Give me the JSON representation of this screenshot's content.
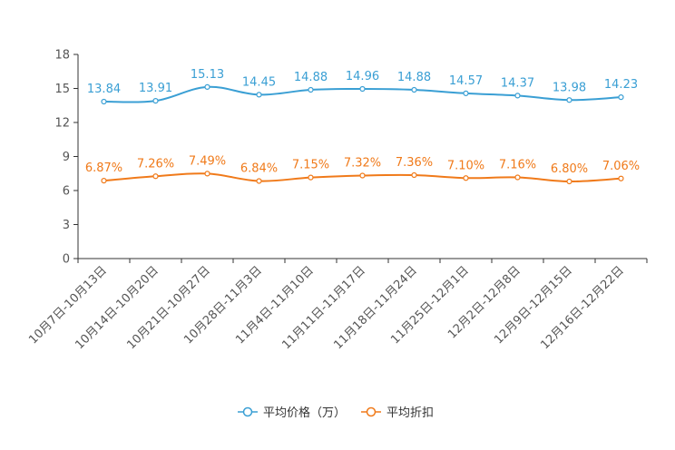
{
  "chart_data": {
    "type": "line",
    "title": "",
    "xlabel": "",
    "ylabel": "",
    "ylim": [
      0,
      18
    ],
    "yticks": [
      0,
      3,
      6,
      9,
      12,
      15,
      18
    ],
    "categories": [
      "10月7日-10月13日",
      "10月14日-10月20日",
      "10月21日-10月27日",
      "10月28日-11月3日",
      "11月4日-11月10日",
      "11月11日-11月17日",
      "11月18日-11月24日",
      "11月25日-12月1日",
      "12月2日-12月8日",
      "12月9日-12月15日",
      "12月16日-12月22日"
    ],
    "series": [
      {
        "name": "平均价格（万）",
        "color": "#3a9fd4",
        "values": [
          13.84,
          13.91,
          15.13,
          14.45,
          14.88,
          14.96,
          14.88,
          14.57,
          14.37,
          13.98,
          14.23
        ],
        "labels": [
          "13.84",
          "13.91",
          "15.13",
          "14.45",
          "14.88",
          "14.96",
          "14.88",
          "14.57",
          "14.37",
          "13.98",
          "14.23"
        ]
      },
      {
        "name": "平均折扣",
        "color": "#f07a1a",
        "values": [
          6.87,
          7.26,
          7.49,
          6.84,
          7.15,
          7.32,
          7.36,
          7.1,
          7.16,
          6.8,
          7.06
        ],
        "labels": [
          "6.87%",
          "7.26%",
          "7.49%",
          "6.84%",
          "7.15%",
          "7.32%",
          "7.36%",
          "7.10%",
          "7.16%",
          "6.80%",
          "7.06%"
        ]
      }
    ],
    "legend_position": "bottom-center"
  }
}
